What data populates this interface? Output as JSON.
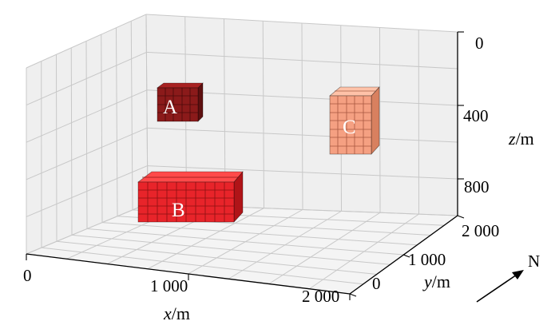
{
  "axes": {
    "x": {
      "ticks": [
        "0",
        "1 000",
        "2 000"
      ],
      "label_var": "x",
      "label_unit": "/m"
    },
    "y": {
      "ticks": [
        "0",
        "1 000",
        "2 000"
      ],
      "label_var": "y",
      "label_unit": "/m"
    },
    "z": {
      "ticks": [
        "0",
        "400",
        "800"
      ],
      "label_var": "z",
      "label_unit": "/m"
    }
  },
  "north": {
    "label": "N"
  },
  "blocks": [
    {
      "label": "A",
      "color": "#8b1a1a"
    },
    {
      "label": "B",
      "color": "#e8242a"
    },
    {
      "label": "C",
      "color": "#f5a082"
    }
  ]
}
